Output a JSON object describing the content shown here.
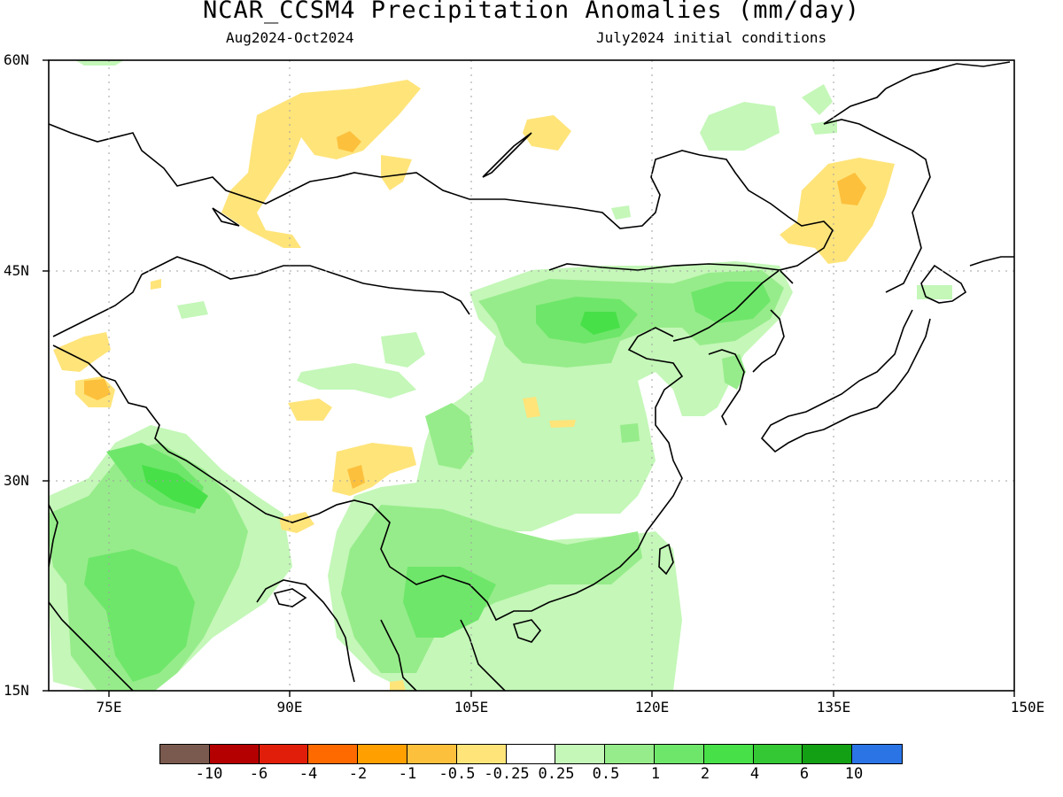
{
  "header": {
    "title": "NCAR_CCSM4 Precipitation Anomalies (mm/day)",
    "period": "Aug2024-Oct2024",
    "initial_conditions": "July2024 initial conditions"
  },
  "axes": {
    "lat_labels": [
      "60N",
      "45N",
      "30N",
      "15N"
    ],
    "lon_labels": [
      "75E",
      "90E",
      "105E",
      "120E",
      "135E",
      "150E"
    ]
  },
  "colorbar": {
    "colors": [
      "#7a5a4e",
      "#b40000",
      "#e01e0a",
      "#ff6a00",
      "#ff9f00",
      "#fcc03c",
      "#ffe47a",
      "#ffffff",
      "#c4f7b8",
      "#96ec8a",
      "#6ee66a",
      "#48e048",
      "#34c834",
      "#14a014",
      "#2b74e6"
    ],
    "labels": [
      "-10",
      "-6",
      "-4",
      "-2",
      "-1",
      "-0.5",
      "-0.25",
      "0.25",
      "0.5",
      "1",
      "2",
      "4",
      "6",
      "10"
    ]
  }
}
